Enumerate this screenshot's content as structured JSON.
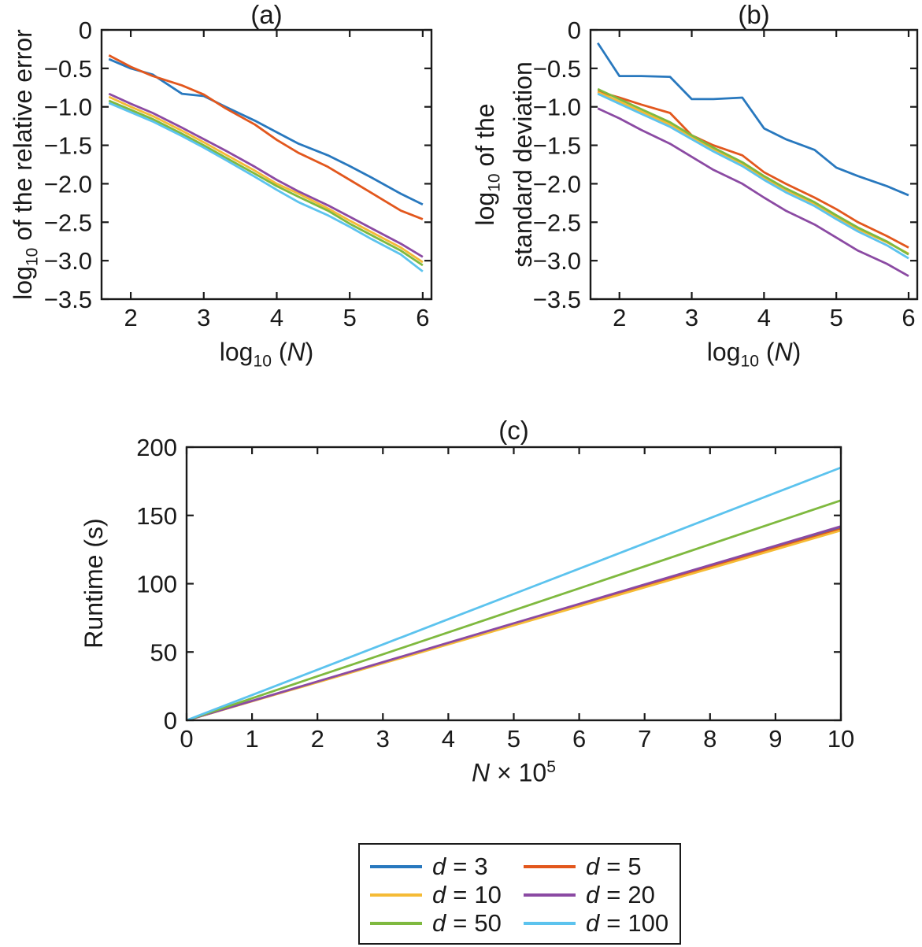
{
  "figure": {
    "background": "#ffffff",
    "frame_color": "#1a1a1a",
    "text_color": "#1a1a1a"
  },
  "chart_data": [
    {
      "panel": "a",
      "type": "line",
      "title": "(a)",
      "xlabel": "log10 (N)",
      "ylabel": "log10 of the relative error",
      "xlabel_parts": {
        "func": "log",
        "sub": "10",
        "open": " (",
        "var": "N",
        "close": ")"
      },
      "ylabel_parts": {
        "func": "log",
        "sub": "10",
        "rest": " of the relative error"
      },
      "xlim": [
        1.6,
        6.12
      ],
      "ylim": [
        -3.5,
        0
      ],
      "xticks": [
        2,
        3,
        4,
        5,
        6
      ],
      "xtick_labels": [
        "2",
        "3",
        "4",
        "5",
        "6"
      ],
      "yticks": [
        0,
        -0.5,
        -1,
        -1.5,
        -2,
        -2.5,
        -3,
        -3.5
      ],
      "ytick_labels": [
        "0",
        "−0.5",
        "−1.0",
        "−1.5",
        "−2.0",
        "−2.5",
        "−3.0",
        "−3.5"
      ],
      "grid": false,
      "x": [
        1.7,
        2,
        2.3,
        2.7,
        3,
        3.3,
        3.7,
        4,
        4.3,
        4.7,
        5,
        5.3,
        5.7,
        6
      ],
      "series": [
        {
          "name": "d = 3",
          "color": "#2878BE",
          "y": [
            -0.38,
            -0.5,
            -0.58,
            -0.83,
            -0.86,
            -1.0,
            -1.18,
            -1.33,
            -1.48,
            -1.63,
            -1.77,
            -1.92,
            -2.13,
            -2.27
          ]
        },
        {
          "name": "d = 5",
          "color": "#E2571D",
          "y": [
            -0.33,
            -0.48,
            -0.6,
            -0.72,
            -0.84,
            -1.02,
            -1.23,
            -1.43,
            -1.6,
            -1.78,
            -1.95,
            -2.12,
            -2.35,
            -2.46
          ]
        },
        {
          "name": "d = 10",
          "color": "#F5BB36",
          "y": [
            -0.87,
            -1.0,
            -1.12,
            -1.31,
            -1.46,
            -1.62,
            -1.83,
            -2.0,
            -2.13,
            -2.32,
            -2.48,
            -2.63,
            -2.83,
            -3.02
          ]
        },
        {
          "name": "d = 20",
          "color": "#8B4AA3",
          "y": [
            -0.83,
            -0.96,
            -1.08,
            -1.27,
            -1.42,
            -1.57,
            -1.78,
            -1.95,
            -2.1,
            -2.28,
            -2.43,
            -2.58,
            -2.78,
            -2.95
          ]
        },
        {
          "name": "d = 50",
          "color": "#7FB93F",
          "y": [
            -0.92,
            -1.04,
            -1.16,
            -1.35,
            -1.5,
            -1.66,
            -1.87,
            -2.03,
            -2.17,
            -2.35,
            -2.52,
            -2.67,
            -2.87,
            -3.06
          ]
        },
        {
          "name": "d = 100",
          "color": "#5CC3EE",
          "y": [
            -0.95,
            -1.07,
            -1.19,
            -1.38,
            -1.53,
            -1.69,
            -1.91,
            -2.08,
            -2.24,
            -2.41,
            -2.56,
            -2.72,
            -2.92,
            -3.14
          ]
        }
      ]
    },
    {
      "panel": "b",
      "type": "line",
      "title": "(b)",
      "xlabel": "log10 (N)",
      "ylabel": "log10 of the standard deviation",
      "xlabel_parts": {
        "func": "log",
        "sub": "10",
        "open": " (",
        "var": "N",
        "close": ")"
      },
      "ylabel_parts": {
        "func": "log",
        "sub": "10",
        "rest": " of the",
        "line2": "standard deviation"
      },
      "xlim": [
        1.6,
        6.12
      ],
      "ylim": [
        -3.5,
        0
      ],
      "xticks": [
        2,
        3,
        4,
        5,
        6
      ],
      "xtick_labels": [
        "2",
        "3",
        "4",
        "5",
        "6"
      ],
      "yticks": [
        0,
        -0.5,
        -1,
        -1.5,
        -2,
        -2.5,
        -3,
        -3.5
      ],
      "ytick_labels": [
        "0",
        "−0.5",
        "−1.0",
        "−1.5",
        "−2.0",
        "−2.5",
        "−3.0",
        "−3.5"
      ],
      "grid": false,
      "x": [
        1.7,
        2,
        2.3,
        2.7,
        3,
        3.3,
        3.7,
        4,
        4.3,
        4.7,
        5,
        5.3,
        5.7,
        6
      ],
      "series": [
        {
          "name": "d = 3",
          "color": "#2878BE",
          "y": [
            -0.17,
            -0.6,
            -0.6,
            -0.61,
            -0.9,
            -0.9,
            -0.88,
            -1.28,
            -1.42,
            -1.56,
            -1.79,
            -1.9,
            -2.03,
            -2.15
          ]
        },
        {
          "name": "d = 5",
          "color": "#E2571D",
          "y": [
            -0.8,
            -0.88,
            -0.97,
            -1.08,
            -1.37,
            -1.5,
            -1.63,
            -1.85,
            -2.0,
            -2.18,
            -2.33,
            -2.5,
            -2.68,
            -2.83
          ]
        },
        {
          "name": "d = 10",
          "color": "#F5BB36",
          "y": [
            -0.81,
            -0.93,
            -1.06,
            -1.23,
            -1.39,
            -1.55,
            -1.74,
            -1.93,
            -2.08,
            -2.26,
            -2.43,
            -2.59,
            -2.76,
            -2.91
          ]
        },
        {
          "name": "d = 20",
          "color": "#8B4AA3",
          "y": [
            -1.02,
            -1.15,
            -1.3,
            -1.48,
            -1.65,
            -1.82,
            -2.0,
            -2.18,
            -2.35,
            -2.53,
            -2.7,
            -2.87,
            -3.04,
            -3.2
          ]
        },
        {
          "name": "d = 50",
          "color": "#7FB93F",
          "y": [
            -0.77,
            -0.9,
            -1.03,
            -1.2,
            -1.37,
            -1.53,
            -1.72,
            -1.9,
            -2.06,
            -2.24,
            -2.41,
            -2.57,
            -2.75,
            -2.92
          ]
        },
        {
          "name": "d = 100",
          "color": "#5CC3EE",
          "y": [
            -0.83,
            -0.96,
            -1.09,
            -1.26,
            -1.42,
            -1.58,
            -1.77,
            -1.95,
            -2.11,
            -2.29,
            -2.46,
            -2.62,
            -2.8,
            -2.97
          ]
        }
      ]
    },
    {
      "panel": "c",
      "type": "line",
      "title": "(c)",
      "xlabel": "N × 10^5",
      "ylabel": "Runtime (s)",
      "xlabel_parts": {
        "var": "N",
        "times": " × 10",
        "sup": "5"
      },
      "ylabel_parts": {
        "rest": "Runtime (s)"
      },
      "xlim": [
        0,
        10
      ],
      "ylim": [
        0,
        200
      ],
      "xticks": [
        0,
        1,
        2,
        3,
        4,
        5,
        6,
        7,
        8,
        9,
        10
      ],
      "xtick_labels": [
        "0",
        "1",
        "2",
        "3",
        "4",
        "5",
        "6",
        "7",
        "8",
        "9",
        "10"
      ],
      "yticks": [
        0,
        50,
        100,
        150,
        200
      ],
      "ytick_labels": [
        "0",
        "50",
        "100",
        "150",
        "200"
      ],
      "grid": false,
      "x": [
        0,
        1,
        2,
        3,
        4,
        5,
        6,
        7,
        8,
        9,
        10
      ],
      "series": [
        {
          "name": "d = 3",
          "color": "#2878BE",
          "y": [
            0,
            14.1,
            28.2,
            42.3,
            56.4,
            70.5,
            84.6,
            98.7,
            112.8,
            126.9,
            141
          ]
        },
        {
          "name": "d = 5",
          "color": "#E2571D",
          "y": [
            0,
            14.0,
            28.0,
            42.0,
            56.0,
            70.0,
            84.0,
            98.0,
            112.0,
            126.0,
            140
          ]
        },
        {
          "name": "d = 10",
          "color": "#F5BB36",
          "y": [
            0,
            13.9,
            27.8,
            41.7,
            55.6,
            69.5,
            83.4,
            97.3,
            111.2,
            125.1,
            139
          ]
        },
        {
          "name": "d = 20",
          "color": "#8B4AA3",
          "y": [
            0,
            14.2,
            28.4,
            42.6,
            56.8,
            71.0,
            85.2,
            99.4,
            113.6,
            127.8,
            142
          ]
        },
        {
          "name": "d = 50",
          "color": "#7FB93F",
          "y": [
            0,
            16.1,
            32.2,
            48.3,
            64.4,
            80.5,
            96.6,
            112.7,
            128.8,
            144.9,
            161
          ]
        },
        {
          "name": "d = 100",
          "color": "#5CC3EE",
          "y": [
            0,
            18.5,
            37.0,
            55.5,
            74.0,
            92.5,
            111.0,
            129.5,
            148.0,
            166.5,
            185
          ]
        }
      ]
    }
  ],
  "legend": {
    "eq": "=",
    "entries": [
      {
        "var": "d",
        "value": "3",
        "color": "#2878BE"
      },
      {
        "var": "d",
        "value": "5",
        "color": "#E2571D"
      },
      {
        "var": "d",
        "value": "10",
        "color": "#F5BB36"
      },
      {
        "var": "d",
        "value": "20",
        "color": "#8B4AA3"
      },
      {
        "var": "d",
        "value": "50",
        "color": "#7FB93F"
      },
      {
        "var": "d",
        "value": "100",
        "color": "#5CC3EE"
      }
    ]
  }
}
